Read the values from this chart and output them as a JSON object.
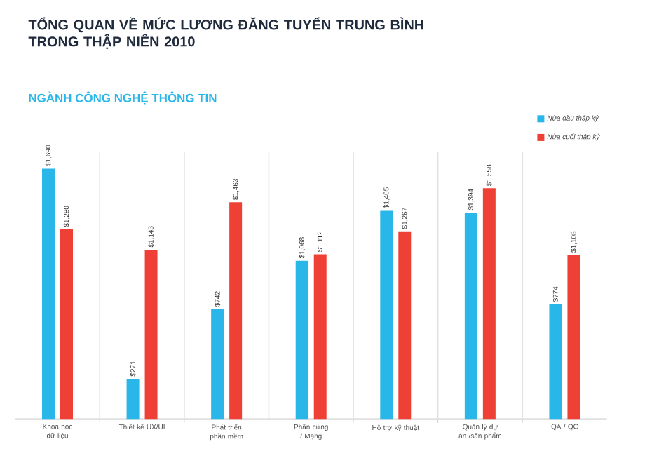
{
  "chart_data": {
    "type": "bar",
    "title": "TỔNG QUAN VỀ MỨC LƯƠNG ĐĂNG TUYỂN TRUNG BÌNH TRONG THẬP NIÊN 2010",
    "subtitle": "NGÀNH CÔNG NGHỆ THÔNG TIN",
    "categories": [
      "Khoa học dữ liệu",
      "Thiết kế UX/UI",
      "Phát triển phần mềm",
      "Phần cứng / Mạng",
      "Hỗ trợ kỹ thuật",
      "Quản lý dự án /sản phẩm",
      "QA / QC"
    ],
    "series": [
      {
        "name": "Nửa đầu thập kỷ",
        "color": "#29b6e8",
        "values": [
          1690,
          271,
          742,
          1068,
          1405,
          1394,
          774
        ],
        "value_labels": [
          "$1,690",
          "$271",
          "$742",
          "$1,068",
          "$1,405",
          "$1,394",
          "$774"
        ]
      },
      {
        "name": "Nửa cuối thập kỷ",
        "color": "#ef4036",
        "values": [
          1280,
          1143,
          1463,
          1112,
          1267,
          1558,
          1108
        ],
        "value_labels": [
          "$1,280",
          "$1,143",
          "$1,463",
          "$1,112",
          "$1,267",
          "$1,558",
          "$1,108"
        ]
      }
    ],
    "ylim": [
      0,
      1800
    ],
    "tick_labels": "x",
    "grid": "x",
    "legend": "top right"
  }
}
